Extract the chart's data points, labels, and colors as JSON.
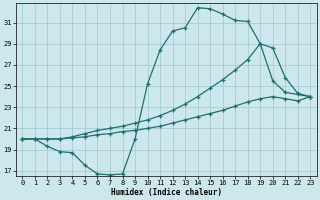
{
  "xlabel": "Humidex (Indice chaleur)",
  "bg_color": "#cce8ec",
  "grid_color": "#a0c8d0",
  "line_color": "#1e7070",
  "xlim_min": -0.5,
  "xlim_max": 23.5,
  "ylim_min": 16.5,
  "ylim_max": 32.8,
  "yticks": [
    17,
    19,
    21,
    23,
    25,
    27,
    29,
    31
  ],
  "xticks": [
    0,
    1,
    2,
    3,
    4,
    5,
    6,
    7,
    8,
    9,
    10,
    11,
    12,
    13,
    14,
    15,
    16,
    17,
    18,
    19,
    20,
    21,
    22,
    23
  ],
  "curve_x": [
    0,
    1,
    2,
    3,
    4,
    5,
    6,
    7,
    8,
    9,
    10,
    11,
    12,
    13,
    14,
    15,
    16,
    17,
    18,
    19,
    20,
    21,
    22,
    23
  ],
  "curve_y": [
    20.0,
    20.0,
    19.3,
    18.8,
    18.7,
    17.5,
    16.7,
    16.6,
    16.7,
    20.0,
    25.2,
    28.4,
    30.2,
    30.5,
    32.4,
    32.3,
    31.8,
    31.2,
    31.1,
    29.0,
    25.5,
    24.4,
    24.2,
    24.0
  ],
  "mid_x": [
    0,
    1,
    2,
    3,
    4,
    5,
    6,
    7,
    8,
    9,
    10,
    11,
    12,
    13,
    14,
    15,
    16,
    17,
    18,
    19,
    20,
    21,
    22,
    23
  ],
  "mid_y": [
    20.0,
    20.0,
    20.0,
    20.0,
    20.2,
    20.5,
    20.8,
    21.0,
    21.2,
    21.5,
    21.8,
    22.2,
    22.7,
    23.3,
    24.0,
    24.8,
    25.6,
    26.5,
    27.5,
    29.0,
    28.6,
    25.8,
    24.3,
    24.0
  ],
  "linear_x": [
    0,
    1,
    2,
    3,
    4,
    5,
    6,
    7,
    8,
    9,
    10,
    11,
    12,
    13,
    14,
    15,
    16,
    17,
    18,
    19,
    20,
    21,
    22,
    23
  ],
  "linear_y": [
    20.0,
    20.0,
    20.0,
    20.0,
    20.1,
    20.2,
    20.4,
    20.5,
    20.7,
    20.8,
    21.0,
    21.2,
    21.5,
    21.8,
    22.1,
    22.4,
    22.7,
    23.1,
    23.5,
    23.8,
    24.0,
    23.8,
    23.6,
    24.0
  ]
}
